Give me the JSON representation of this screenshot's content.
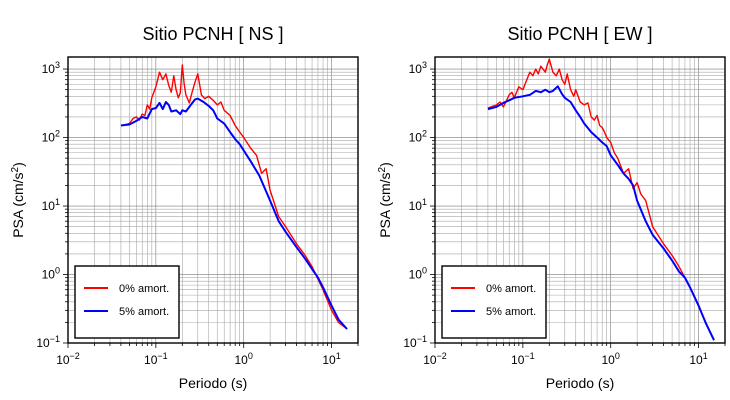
{
  "chart_data": [
    {
      "type": "line",
      "title": "Sitio PCNH [ NS ]",
      "xlabel": "Periodo (s)",
      "ylabel": "PSA (cm/s²)",
      "xscale": "log",
      "yscale": "log",
      "xlim": [
        0.01,
        20
      ],
      "ylim": [
        0.1,
        1500
      ],
      "x_ticks": [
        {
          "value": 0.01,
          "base": "10",
          "exp": "−2"
        },
        {
          "value": 0.1,
          "base": "10",
          "exp": "−1"
        },
        {
          "value": 1,
          "base": "10",
          "exp": "0"
        },
        {
          "value": 10,
          "base": "10",
          "exp": "1"
        }
      ],
      "y_ticks": [
        {
          "value": 0.1,
          "base": "10",
          "exp": "−1"
        },
        {
          "value": 1,
          "base": "10",
          "exp": "0"
        },
        {
          "value": 10,
          "base": "10",
          "exp": "1"
        },
        {
          "value": 100,
          "base": "10",
          "exp": "2"
        },
        {
          "value": 1000,
          "base": "10",
          "exp": "3"
        }
      ],
      "grid": true,
      "legend_position": "bottom-left",
      "series": [
        {
          "name": "0% amort.",
          "color": "#ff0000",
          "x": [
            0.04,
            0.05,
            0.055,
            0.06,
            0.065,
            0.07,
            0.075,
            0.08,
            0.085,
            0.09,
            0.1,
            0.11,
            0.12,
            0.13,
            0.14,
            0.15,
            0.16,
            0.17,
            0.18,
            0.19,
            0.2,
            0.21,
            0.22,
            0.24,
            0.26,
            0.28,
            0.3,
            0.33,
            0.36,
            0.4,
            0.45,
            0.5,
            0.55,
            0.6,
            0.7,
            0.8,
            0.9,
            1.0,
            1.2,
            1.4,
            1.6,
            1.8,
            2.0,
            2.5,
            3,
            4,
            5,
            6,
            8,
            10,
            12,
            15
          ],
          "y": [
            150,
            160,
            190,
            200,
            180,
            220,
            210,
            300,
            260,
            380,
            550,
            900,
            700,
            850,
            580,
            460,
            800,
            500,
            380,
            450,
            1150,
            600,
            420,
            320,
            470,
            650,
            850,
            420,
            370,
            400,
            350,
            300,
            330,
            250,
            210,
            150,
            120,
            100,
            70,
            55,
            30,
            35,
            17,
            7,
            5,
            2.8,
            1.9,
            1.3,
            0.6,
            0.3,
            0.2,
            0.16
          ]
        },
        {
          "name": "5% amort.",
          "color": "#0000ff",
          "x": [
            0.04,
            0.05,
            0.06,
            0.07,
            0.08,
            0.09,
            0.1,
            0.11,
            0.12,
            0.13,
            0.14,
            0.15,
            0.17,
            0.19,
            0.2,
            0.22,
            0.25,
            0.28,
            0.3,
            0.35,
            0.4,
            0.45,
            0.5,
            0.6,
            0.7,
            0.8,
            0.9,
            1.0,
            1.2,
            1.5,
            2,
            2.5,
            3,
            4,
            5,
            6,
            7,
            8,
            10,
            12,
            15
          ],
          "y": [
            150,
            155,
            175,
            200,
            190,
            260,
            270,
            320,
            260,
            330,
            300,
            240,
            250,
            220,
            250,
            240,
            300,
            360,
            370,
            330,
            290,
            250,
            190,
            160,
            120,
            95,
            80,
            65,
            45,
            28,
            12,
            6,
            4.2,
            2.5,
            1.7,
            1.2,
            0.9,
            0.65,
            0.35,
            0.22,
            0.16
          ]
        }
      ]
    },
    {
      "type": "line",
      "title": "Sitio PCNH [ EW ]",
      "xlabel": "Periodo (s)",
      "ylabel": "PSA (cm/s²)",
      "xscale": "log",
      "yscale": "log",
      "xlim": [
        0.01,
        20
      ],
      "ylim": [
        0.1,
        1500
      ],
      "x_ticks": [
        {
          "value": 0.01,
          "base": "10",
          "exp": "−2"
        },
        {
          "value": 0.1,
          "base": "10",
          "exp": "−1"
        },
        {
          "value": 1,
          "base": "10",
          "exp": "0"
        },
        {
          "value": 10,
          "base": "10",
          "exp": "1"
        }
      ],
      "y_ticks": [
        {
          "value": 0.1,
          "base": "10",
          "exp": "−1"
        },
        {
          "value": 1,
          "base": "10",
          "exp": "0"
        },
        {
          "value": 10,
          "base": "10",
          "exp": "1"
        },
        {
          "value": 100,
          "base": "10",
          "exp": "2"
        },
        {
          "value": 1000,
          "base": "10",
          "exp": "3"
        }
      ],
      "grid": true,
      "legend_position": "bottom-left",
      "series": [
        {
          "name": "0% amort.",
          "color": "#ff0000",
          "x": [
            0.04,
            0.05,
            0.055,
            0.06,
            0.07,
            0.075,
            0.08,
            0.09,
            0.1,
            0.11,
            0.12,
            0.13,
            0.14,
            0.15,
            0.16,
            0.17,
            0.18,
            0.19,
            0.2,
            0.22,
            0.24,
            0.26,
            0.28,
            0.3,
            0.32,
            0.35,
            0.38,
            0.4,
            0.45,
            0.5,
            0.55,
            0.6,
            0.65,
            0.7,
            0.75,
            0.8,
            0.85,
            0.9,
            1.0,
            1.1,
            1.2,
            1.4,
            1.6,
            1.8,
            2.0,
            2.2,
            2.5,
            3,
            4,
            5,
            6,
            8,
            10,
            12,
            15
          ],
          "y": [
            270,
            300,
            330,
            280,
            420,
            460,
            380,
            550,
            500,
            680,
            900,
            800,
            1000,
            850,
            1100,
            1000,
            900,
            1150,
            1400,
            900,
            800,
            1000,
            700,
            600,
            850,
            500,
            400,
            500,
            330,
            300,
            320,
            200,
            180,
            210,
            150,
            140,
            120,
            100,
            85,
            60,
            50,
            30,
            35,
            18,
            22,
            15,
            12,
            5,
            2.8,
            1.9,
            1.3,
            0.65,
            0.35,
            0.2,
            0.11
          ]
        },
        {
          "name": "5% amort.",
          "color": "#0000ff",
          "x": [
            0.04,
            0.05,
            0.06,
            0.07,
            0.08,
            0.1,
            0.12,
            0.14,
            0.16,
            0.18,
            0.2,
            0.22,
            0.25,
            0.28,
            0.3,
            0.35,
            0.4,
            0.45,
            0.5,
            0.6,
            0.7,
            0.8,
            0.9,
            1.0,
            1.2,
            1.4,
            1.6,
            1.8,
            2.0,
            2.5,
            3,
            4,
            5,
            6,
            7,
            8,
            10,
            12,
            15
          ],
          "y": [
            260,
            280,
            320,
            350,
            380,
            400,
            420,
            480,
            460,
            500,
            460,
            480,
            560,
            430,
            380,
            330,
            250,
            200,
            160,
            120,
            100,
            85,
            75,
            55,
            40,
            30,
            25,
            20,
            12,
            6,
            3.8,
            2.4,
            1.6,
            1.1,
            0.9,
            0.65,
            0.35,
            0.2,
            0.11
          ]
        }
      ]
    }
  ]
}
